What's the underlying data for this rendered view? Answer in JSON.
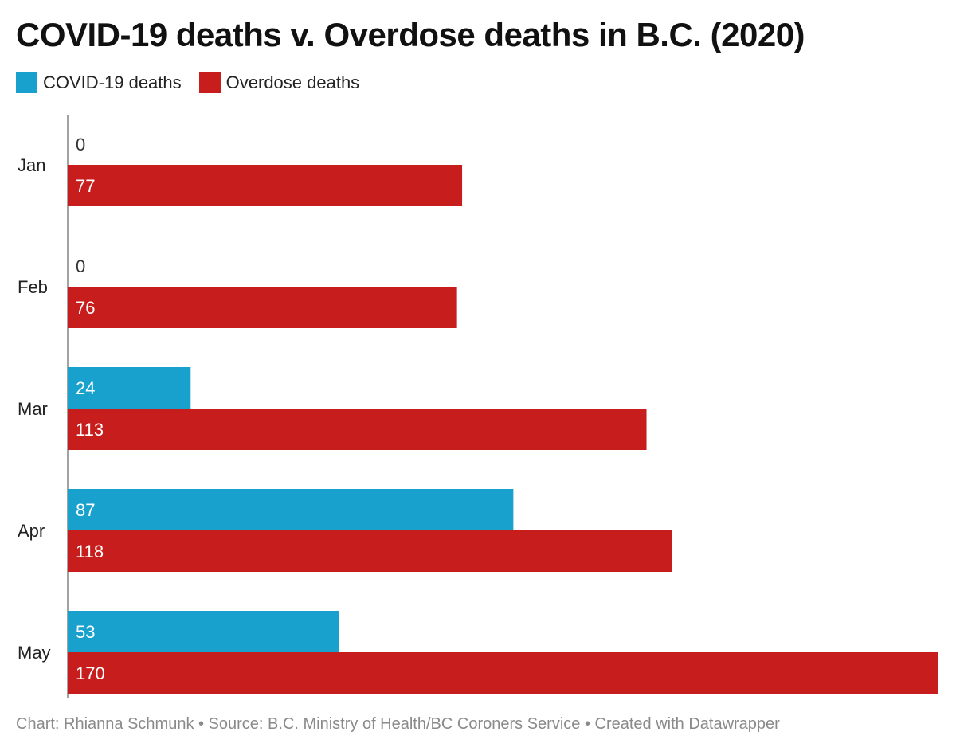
{
  "title": "COVID-19 deaths v. Overdose deaths in B.C. (2020)",
  "footer": "Chart: Rhianna Schmunk • Source: B.C. Ministry of Health/BC Coroners Service • Created with Datawrapper",
  "chart_data": {
    "type": "bar",
    "orientation": "horizontal",
    "categories": [
      "Jan",
      "Feb",
      "Mar",
      "Apr",
      "May"
    ],
    "series": [
      {
        "name": "COVID-19 deaths",
        "color": "#18a1cd",
        "values": [
          0,
          0,
          24,
          87,
          53
        ]
      },
      {
        "name": "Overdose deaths",
        "color": "#c71e1d",
        "values": [
          77,
          76,
          113,
          118,
          170
        ]
      }
    ],
    "xlim": [
      0,
      170
    ],
    "grid": false,
    "legend_position": "top-left",
    "data_labels": true
  }
}
